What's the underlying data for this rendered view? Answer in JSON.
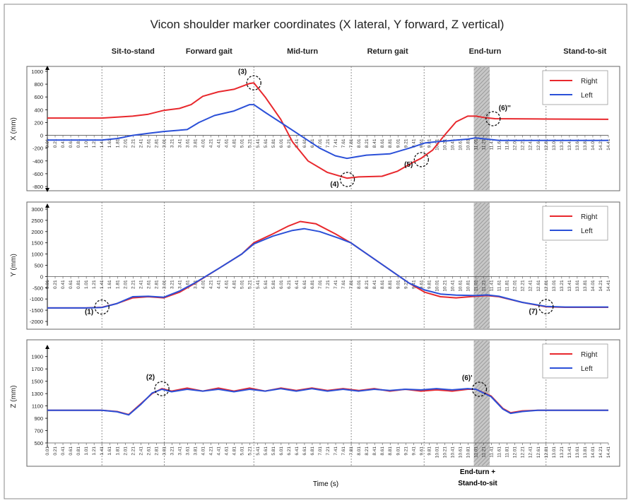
{
  "colors": {
    "right": "#e8282d",
    "left": "#2b50d8",
    "marker": "#111111",
    "shade": "#9a9a9a"
  },
  "figure": {
    "title": "Vicon shoulder marker coordinates (X lateral, Y forward, Z vertical)",
    "xlabel": "Time (s)",
    "bottom_annotation": [
      "End-turn +",
      "Stand-to-sit"
    ],
    "phases": [
      {
        "label": "Sit-to-stand",
        "t": 1.41
      },
      {
        "label": "Forward gait",
        "t": 3.01
      },
      {
        "label": "Mid-turn",
        "t": 5.31
      },
      {
        "label": "Return gait",
        "t": 7.81
      },
      {
        "label": "End-turn",
        "t": 9.68
      },
      {
        "label": "Stand-to-sit",
        "t": 12.81
      }
    ]
  },
  "chart_data": [
    {
      "type": "line",
      "ylabel": "X (mm)",
      "ylim": [
        -800,
        1000
      ],
      "yticks": [
        -800,
        -600,
        -400,
        -200,
        0,
        200,
        400,
        600,
        800,
        1000
      ],
      "xlim": [
        0.01,
        14.41
      ],
      "xticks": [
        "0.01",
        "0.21",
        "0.41",
        "0.61",
        "0.81",
        "1.01",
        "1.21",
        "1.41",
        "1.61",
        "1.81",
        "2.01",
        "2.21",
        "2.41",
        "2.61",
        "2.81",
        "3.01",
        "3.21",
        "3.41",
        "3.61",
        "3.81",
        "4.01",
        "4.21",
        "4.41",
        "4.61",
        "4.81",
        "5.01",
        "5.21",
        "5.41",
        "5.61",
        "5.81",
        "6.01",
        "6.21",
        "6.41",
        "6.61",
        "6.81",
        "7.01",
        "7.21",
        "7.41",
        "7.61",
        "7.81",
        "8.01",
        "8.21",
        "8.41",
        "8.61",
        "8.81",
        "9.01",
        "9.21",
        "9.41",
        "9.61",
        "9.81",
        "10.01",
        "10.21",
        "10.41",
        "10.61",
        "10.81",
        "11.01",
        "11.21",
        "11.41",
        "11.61",
        "11.81",
        "12.01",
        "12.21",
        "12.41",
        "12.61",
        "12.81",
        "13.01",
        "13.21",
        "13.41",
        "13.61",
        "13.81",
        "14.01",
        "14.21",
        "14.41"
      ],
      "grid": false,
      "legend": "top-right",
      "series": [
        {
          "name": "Right",
          "points": [
            [
              0.01,
              270
            ],
            [
              1.41,
              270
            ],
            [
              2.2,
              300
            ],
            [
              2.6,
              330
            ],
            [
              3.0,
              390
            ],
            [
              3.4,
              420
            ],
            [
              3.7,
              480
            ],
            [
              4.0,
              610
            ],
            [
              4.4,
              680
            ],
            [
              4.8,
              720
            ],
            [
              5.2,
              810
            ],
            [
              5.31,
              820
            ],
            [
              5.6,
              600
            ],
            [
              6.0,
              250
            ],
            [
              6.3,
              -100
            ],
            [
              6.7,
              -400
            ],
            [
              7.2,
              -580
            ],
            [
              7.7,
              -670
            ],
            [
              8.0,
              -650
            ],
            [
              8.6,
              -640
            ],
            [
              9.0,
              -560
            ],
            [
              9.4,
              -420
            ],
            [
              9.6,
              -360
            ],
            [
              9.9,
              -230
            ],
            [
              10.2,
              0
            ],
            [
              10.5,
              210
            ],
            [
              10.8,
              300
            ],
            [
              11.01,
              300
            ],
            [
              11.2,
              280
            ],
            [
              11.5,
              260
            ],
            [
              12.8,
              255
            ],
            [
              14.41,
              250
            ]
          ]
        },
        {
          "name": "Left",
          "points": [
            [
              0.01,
              -75
            ],
            [
              1.41,
              -75
            ],
            [
              1.8,
              -50
            ],
            [
              2.2,
              0
            ],
            [
              2.6,
              30
            ],
            [
              3.0,
              60
            ],
            [
              3.6,
              90
            ],
            [
              3.9,
              200
            ],
            [
              4.3,
              310
            ],
            [
              4.8,
              380
            ],
            [
              5.2,
              480
            ],
            [
              5.31,
              480
            ],
            [
              5.6,
              360
            ],
            [
              6.0,
              200
            ],
            [
              6.5,
              0
            ],
            [
              7.0,
              -200
            ],
            [
              7.4,
              -320
            ],
            [
              7.7,
              -360
            ],
            [
              8.2,
              -310
            ],
            [
              8.8,
              -290
            ],
            [
              9.3,
              -200
            ],
            [
              9.7,
              -120
            ],
            [
              10.0,
              -100
            ],
            [
              10.4,
              -80
            ],
            [
              10.8,
              -60
            ],
            [
              11.0,
              -40
            ],
            [
              11.3,
              -60
            ],
            [
              11.6,
              -80
            ],
            [
              14.41,
              -80
            ]
          ]
        }
      ],
      "annotations": [
        {
          "label": "(3)",
          "x": 5.31,
          "y": 820
        },
        {
          "label": "(4)",
          "x": 7.71,
          "y": -690
        },
        {
          "label": "(5)",
          "x": 9.61,
          "y": -380
        },
        {
          "label": "(6)ʹʹ",
          "x": 11.45,
          "y": 260
        }
      ]
    },
    {
      "type": "line",
      "ylabel": "Y (mm)",
      "ylim": [
        -2000,
        3000
      ],
      "yticks": [
        -2000,
        -1500,
        -1000,
        -500,
        0,
        500,
        1000,
        1500,
        2000,
        2500,
        3000
      ],
      "xlim": [
        0.01,
        14.41
      ],
      "grid": false,
      "legend": "top-right",
      "series": [
        {
          "name": "Right",
          "points": [
            [
              0.01,
              -1400
            ],
            [
              1.0,
              -1400
            ],
            [
              1.41,
              -1370
            ],
            [
              1.8,
              -1200
            ],
            [
              2.2,
              -950
            ],
            [
              2.6,
              -900
            ],
            [
              3.0,
              -950
            ],
            [
              3.4,
              -700
            ],
            [
              3.8,
              -300
            ],
            [
              4.4,
              350
            ],
            [
              5.0,
              1000
            ],
            [
              5.31,
              1500
            ],
            [
              5.8,
              1900
            ],
            [
              6.2,
              2250
            ],
            [
              6.5,
              2450
            ],
            [
              6.9,
              2350
            ],
            [
              7.4,
              1900
            ],
            [
              7.8,
              1500
            ],
            [
              8.3,
              900
            ],
            [
              8.8,
              300
            ],
            [
              9.3,
              -300
            ],
            [
              9.7,
              -700
            ],
            [
              10.1,
              -900
            ],
            [
              10.5,
              -950
            ],
            [
              11.0,
              -880
            ],
            [
              11.3,
              -850
            ],
            [
              11.6,
              -900
            ],
            [
              12.2,
              -1150
            ],
            [
              12.81,
              -1350
            ],
            [
              13.3,
              -1370
            ],
            [
              14.41,
              -1370
            ]
          ]
        },
        {
          "name": "Left",
          "points": [
            [
              0.01,
              -1400
            ],
            [
              1.0,
              -1400
            ],
            [
              1.41,
              -1380
            ],
            [
              1.8,
              -1200
            ],
            [
              2.2,
              -900
            ],
            [
              2.6,
              -880
            ],
            [
              3.0,
              -920
            ],
            [
              3.4,
              -650
            ],
            [
              3.8,
              -280
            ],
            [
              4.4,
              350
            ],
            [
              5.0,
              1000
            ],
            [
              5.31,
              1450
            ],
            [
              5.8,
              1800
            ],
            [
              6.3,
              2050
            ],
            [
              6.6,
              2130
            ],
            [
              7.0,
              2000
            ],
            [
              7.5,
              1700
            ],
            [
              7.8,
              1500
            ],
            [
              8.3,
              900
            ],
            [
              8.8,
              300
            ],
            [
              9.3,
              -300
            ],
            [
              9.7,
              -600
            ],
            [
              10.1,
              -780
            ],
            [
              10.5,
              -830
            ],
            [
              11.0,
              -850
            ],
            [
              11.3,
              -820
            ],
            [
              11.6,
              -880
            ],
            [
              12.2,
              -1150
            ],
            [
              12.81,
              -1330
            ],
            [
              13.3,
              -1360
            ],
            [
              14.41,
              -1360
            ]
          ]
        }
      ],
      "annotations": [
        {
          "label": "(1)",
          "x": 1.41,
          "y": -1360
        },
        {
          "label": "(7)",
          "x": 12.81,
          "y": -1340
        }
      ]
    },
    {
      "type": "line",
      "ylabel": "Z (mm)",
      "ylim": [
        500,
        2000
      ],
      "yticks": [
        500,
        700,
        900,
        1100,
        1300,
        1500,
        1700,
        1900
      ],
      "xlim": [
        0.01,
        14.41
      ],
      "grid": false,
      "legend": "top-right",
      "series": [
        {
          "name": "Right",
          "points": [
            [
              0.01,
              1030
            ],
            [
              1.41,
              1030
            ],
            [
              1.8,
              1010
            ],
            [
              2.1,
              960
            ],
            [
              2.4,
              1130
            ],
            [
              2.7,
              1300
            ],
            [
              2.95,
              1380
            ],
            [
              3.2,
              1340
            ],
            [
              3.6,
              1390
            ],
            [
              4.0,
              1340
            ],
            [
              4.4,
              1390
            ],
            [
              4.8,
              1340
            ],
            [
              5.2,
              1390
            ],
            [
              5.6,
              1340
            ],
            [
              6.0,
              1390
            ],
            [
              6.4,
              1350
            ],
            [
              6.8,
              1390
            ],
            [
              7.2,
              1350
            ],
            [
              7.6,
              1380
            ],
            [
              8.0,
              1350
            ],
            [
              8.4,
              1380
            ],
            [
              8.8,
              1340
            ],
            [
              9.2,
              1370
            ],
            [
              9.6,
              1340
            ],
            [
              10.0,
              1360
            ],
            [
              10.4,
              1340
            ],
            [
              10.8,
              1370
            ],
            [
              11.01,
              1370
            ],
            [
              11.4,
              1260
            ],
            [
              11.7,
              1060
            ],
            [
              11.9,
              990
            ],
            [
              12.2,
              1020
            ],
            [
              12.6,
              1030
            ],
            [
              14.41,
              1030
            ]
          ]
        },
        {
          "name": "Left",
          "points": [
            [
              0.01,
              1030
            ],
            [
              1.41,
              1030
            ],
            [
              1.8,
              1005
            ],
            [
              2.1,
              955
            ],
            [
              2.4,
              1120
            ],
            [
              2.7,
              1310
            ],
            [
              2.95,
              1370
            ],
            [
              3.2,
              1330
            ],
            [
              3.6,
              1370
            ],
            [
              4.0,
              1340
            ],
            [
              4.4,
              1370
            ],
            [
              4.8,
              1330
            ],
            [
              5.2,
              1370
            ],
            [
              5.6,
              1340
            ],
            [
              6.0,
              1380
            ],
            [
              6.4,
              1340
            ],
            [
              6.8,
              1380
            ],
            [
              7.2,
              1340
            ],
            [
              7.6,
              1370
            ],
            [
              8.0,
              1340
            ],
            [
              8.4,
              1370
            ],
            [
              8.8,
              1350
            ],
            [
              9.2,
              1370
            ],
            [
              9.6,
              1360
            ],
            [
              10.0,
              1380
            ],
            [
              10.4,
              1360
            ],
            [
              10.8,
              1380
            ],
            [
              11.01,
              1370
            ],
            [
              11.4,
              1250
            ],
            [
              11.7,
              1050
            ],
            [
              11.9,
              980
            ],
            [
              12.2,
              1010
            ],
            [
              12.6,
              1030
            ],
            [
              14.41,
              1030
            ]
          ]
        }
      ],
      "annotations": [
        {
          "label": "(2)",
          "x": 2.95,
          "y": 1380
        },
        {
          "label": "(6)ʹ",
          "x": 11.1,
          "y": 1370
        }
      ]
    }
  ]
}
